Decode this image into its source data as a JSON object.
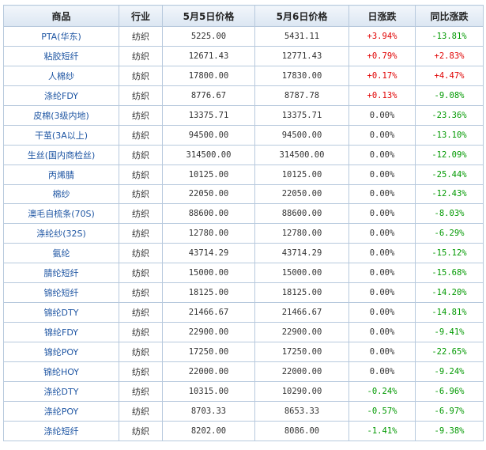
{
  "table": {
    "headers": [
      "商品",
      "行业",
      "5月5日价格",
      "5月6日价格",
      "日涨跌",
      "同比涨跌"
    ],
    "rows": [
      {
        "name": "PTA(华东)",
        "industry": "纺织",
        "p1": "5225.00",
        "p2": "5431.11",
        "daily": "+3.94%",
        "daily_dir": "up",
        "yoy": "-13.81%",
        "yoy_dir": "down"
      },
      {
        "name": "粘胶短纤",
        "industry": "纺织",
        "p1": "12671.43",
        "p2": "12771.43",
        "daily": "+0.79%",
        "daily_dir": "up",
        "yoy": "+2.83%",
        "yoy_dir": "up"
      },
      {
        "name": "人棉纱",
        "industry": "纺织",
        "p1": "17800.00",
        "p2": "17830.00",
        "daily": "+0.17%",
        "daily_dir": "up",
        "yoy": "+4.47%",
        "yoy_dir": "up"
      },
      {
        "name": "涤纶FDY",
        "industry": "纺织",
        "p1": "8776.67",
        "p2": "8787.78",
        "daily": "+0.13%",
        "daily_dir": "up",
        "yoy": "-9.08%",
        "yoy_dir": "down"
      },
      {
        "name": "皮棉(3级内地)",
        "industry": "纺织",
        "p1": "13375.71",
        "p2": "13375.71",
        "daily": "0.00%",
        "daily_dir": "flat",
        "yoy": "-23.36%",
        "yoy_dir": "down"
      },
      {
        "name": "干茧(3A以上)",
        "industry": "纺织",
        "p1": "94500.00",
        "p2": "94500.00",
        "daily": "0.00%",
        "daily_dir": "flat",
        "yoy": "-13.10%",
        "yoy_dir": "down"
      },
      {
        "name": "生丝(国内商检丝)",
        "industry": "纺织",
        "p1": "314500.00",
        "p2": "314500.00",
        "daily": "0.00%",
        "daily_dir": "flat",
        "yoy": "-12.09%",
        "yoy_dir": "down"
      },
      {
        "name": "丙烯腈",
        "industry": "纺织",
        "p1": "10125.00",
        "p2": "10125.00",
        "daily": "0.00%",
        "daily_dir": "flat",
        "yoy": "-25.44%",
        "yoy_dir": "down"
      },
      {
        "name": "棉纱",
        "industry": "纺织",
        "p1": "22050.00",
        "p2": "22050.00",
        "daily": "0.00%",
        "daily_dir": "flat",
        "yoy": "-12.43%",
        "yoy_dir": "down"
      },
      {
        "name": "澳毛自梳条(70S)",
        "industry": "纺织",
        "p1": "88600.00",
        "p2": "88600.00",
        "daily": "0.00%",
        "daily_dir": "flat",
        "yoy": "-8.03%",
        "yoy_dir": "down"
      },
      {
        "name": "涤纶纱(32S)",
        "industry": "纺织",
        "p1": "12780.00",
        "p2": "12780.00",
        "daily": "0.00%",
        "daily_dir": "flat",
        "yoy": "-6.29%",
        "yoy_dir": "down"
      },
      {
        "name": "氨纶",
        "industry": "纺织",
        "p1": "43714.29",
        "p2": "43714.29",
        "daily": "0.00%",
        "daily_dir": "flat",
        "yoy": "-15.12%",
        "yoy_dir": "down"
      },
      {
        "name": "腈纶短纤",
        "industry": "纺织",
        "p1": "15000.00",
        "p2": "15000.00",
        "daily": "0.00%",
        "daily_dir": "flat",
        "yoy": "-15.68%",
        "yoy_dir": "down"
      },
      {
        "name": "锦纶短纤",
        "industry": "纺织",
        "p1": "18125.00",
        "p2": "18125.00",
        "daily": "0.00%",
        "daily_dir": "flat",
        "yoy": "-14.20%",
        "yoy_dir": "down"
      },
      {
        "name": "锦纶DTY",
        "industry": "纺织",
        "p1": "21466.67",
        "p2": "21466.67",
        "daily": "0.00%",
        "daily_dir": "flat",
        "yoy": "-14.81%",
        "yoy_dir": "down"
      },
      {
        "name": "锦纶FDY",
        "industry": "纺织",
        "p1": "22900.00",
        "p2": "22900.00",
        "daily": "0.00%",
        "daily_dir": "flat",
        "yoy": "-9.41%",
        "yoy_dir": "down"
      },
      {
        "name": "锦纶POY",
        "industry": "纺织",
        "p1": "17250.00",
        "p2": "17250.00",
        "daily": "0.00%",
        "daily_dir": "flat",
        "yoy": "-22.65%",
        "yoy_dir": "down"
      },
      {
        "name": "锦纶HOY",
        "industry": "纺织",
        "p1": "22000.00",
        "p2": "22000.00",
        "daily": "0.00%",
        "daily_dir": "flat",
        "yoy": "-9.24%",
        "yoy_dir": "down"
      },
      {
        "name": "涤纶DTY",
        "industry": "纺织",
        "p1": "10315.00",
        "p2": "10290.00",
        "daily": "-0.24%",
        "daily_dir": "down",
        "yoy": "-6.96%",
        "yoy_dir": "down"
      },
      {
        "name": "涤纶POY",
        "industry": "纺织",
        "p1": "8703.33",
        "p2": "8653.33",
        "daily": "-0.57%",
        "daily_dir": "down",
        "yoy": "-6.97%",
        "yoy_dir": "down"
      },
      {
        "name": "涤纶短纤",
        "industry": "纺织",
        "p1": "8202.00",
        "p2": "8086.00",
        "daily": "-1.41%",
        "daily_dir": "down",
        "yoy": "-9.38%",
        "yoy_dir": "down"
      }
    ]
  },
  "colors": {
    "up": "#e00000",
    "down": "#009900",
    "name_link": "#1f56a3",
    "border": "#b7c9dd",
    "header_bg": "#dbe6f2"
  }
}
